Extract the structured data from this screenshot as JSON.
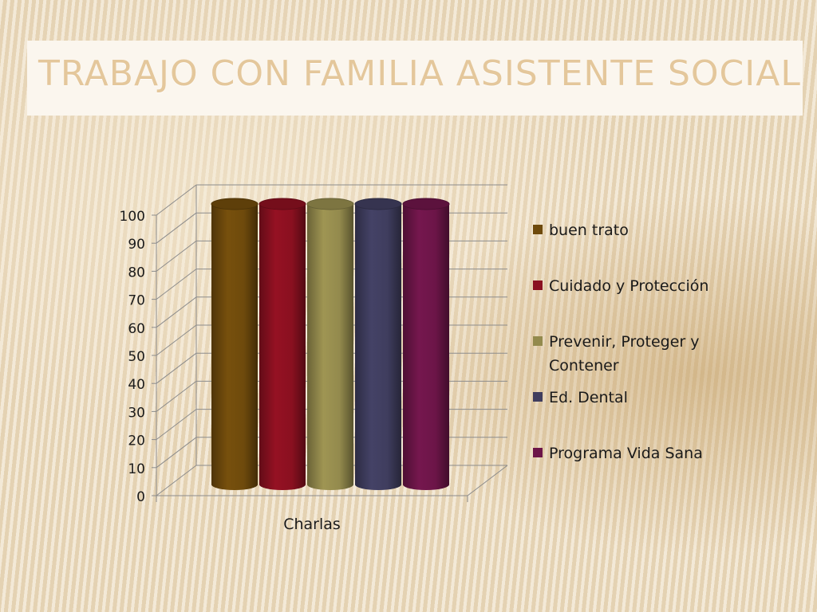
{
  "title": "TRABAJO CON FAMILIA ASISTENTE SOCIAL",
  "chart_data": {
    "type": "bar",
    "categories": [
      "Charlas"
    ],
    "series": [
      {
        "name": " buen trato",
        "values": [
          100
        ],
        "color": "#6e4a0c"
      },
      {
        "name": "Cuidado y Protección",
        "values": [
          100
        ],
        "color": "#8a1020"
      },
      {
        "name": "Prevenir, Proteger y Contener",
        "values": [
          100
        ],
        "color": "#938a4d"
      },
      {
        "name": "Ed. Dental",
        "values": [
          100
        ],
        "color": "#3f3d5e"
      },
      {
        "name": "Programa Vida Sana",
        "values": [
          100
        ],
        "color": "#6c1548"
      }
    ],
    "yticks": [
      "0",
      "10",
      "20",
      "30",
      "40",
      "50",
      "60",
      "70",
      "80",
      "90",
      "100"
    ],
    "ylim": [
      0,
      100
    ],
    "grid": true,
    "legend_position": "right",
    "style": "3d-cylinder"
  }
}
